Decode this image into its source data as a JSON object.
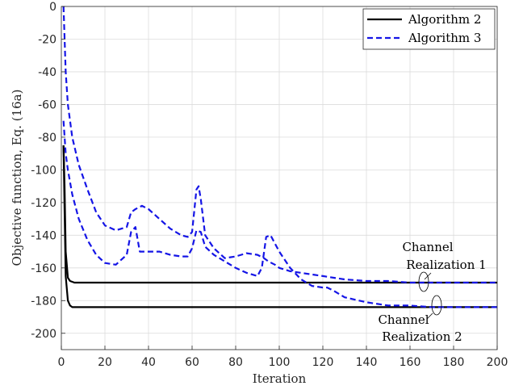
{
  "chart_data": {
    "type": "line",
    "xlabel": "Iteration",
    "ylabel": "Objective function, Eq. (16a)",
    "xlim": [
      0,
      200
    ],
    "ylim": [
      -210,
      0
    ],
    "xticks": [
      0,
      20,
      40,
      60,
      80,
      100,
      120,
      140,
      160,
      180,
      200
    ],
    "yticks": [
      0,
      -20,
      -40,
      -60,
      -80,
      -100,
      -120,
      -140,
      -160,
      -180,
      -200
    ],
    "grid": true,
    "legend_position": "top-right",
    "legend": [
      "Algorithm 2",
      "Algorithm 3"
    ],
    "series": [
      {
        "name": "Algorithm 2",
        "color": "#000000",
        "style": "solid",
        "x": [
          1,
          1.5,
          2,
          3,
          4,
          6,
          10,
          50,
          100,
          150,
          200
        ],
        "y": [
          -85,
          -110,
          -150,
          -166,
          -168,
          -169,
          -169,
          -169,
          -169,
          -169,
          -169
        ]
      },
      {
        "name": "Algorithm 2",
        "color": "#000000",
        "style": "solid",
        "x": [
          1,
          1.5,
          2,
          3,
          4,
          5,
          8,
          50,
          100,
          150,
          200
        ],
        "y": [
          -85,
          -125,
          -165,
          -180,
          -183,
          -184,
          -184,
          -184,
          -184,
          -184,
          -184
        ]
      },
      {
        "name": "Algorithm 3",
        "color": "#1515e6",
        "style": "dashed",
        "x": [
          1,
          2,
          3,
          5,
          8,
          12,
          16,
          20,
          25,
          30,
          32,
          34,
          37,
          40,
          45,
          50,
          55,
          58,
          60,
          62,
          63,
          64,
          66,
          70,
          75,
          80,
          85,
          90,
          93,
          95,
          98,
          100,
          105,
          110,
          115,
          120,
          125,
          130,
          140,
          150,
          160,
          170,
          180,
          190,
          200
        ],
        "y": [
          0,
          -40,
          -60,
          -80,
          -97,
          -112,
          -126,
          -134,
          -137,
          -135,
          -126,
          -124,
          -122,
          -124,
          -130,
          -136,
          -140,
          -141,
          -138,
          -112,
          -110,
          -118,
          -140,
          -148,
          -154,
          -153,
          -151,
          -152,
          -154,
          -156,
          -158,
          -160,
          -162,
          -163,
          -164,
          -165,
          -166,
          -167,
          -168,
          -168,
          -169,
          -169,
          -169,
          -169,
          -169
        ]
      },
      {
        "name": "Algorithm 3",
        "color": "#1515e6",
        "style": "dashed",
        "x": [
          1,
          2,
          3,
          5,
          8,
          12,
          16,
          20,
          25,
          30,
          32,
          34,
          36,
          40,
          45,
          50,
          55,
          58,
          60,
          62,
          64,
          66,
          70,
          75,
          80,
          85,
          90,
          92,
          94,
          96,
          100,
          105,
          110,
          115,
          120,
          122,
          125,
          130,
          140,
          150,
          160,
          170,
          180,
          190,
          200
        ],
        "y": [
          -70,
          -90,
          -100,
          -115,
          -130,
          -143,
          -152,
          -157,
          -158,
          -152,
          -138,
          -135,
          -150,
          -150,
          -150,
          -152,
          -153,
          -153,
          -148,
          -137,
          -138,
          -147,
          -152,
          -156,
          -160,
          -163,
          -165,
          -160,
          -141,
          -140,
          -150,
          -160,
          -167,
          -171,
          -172,
          -172,
          -174,
          -178,
          -181,
          -183,
          -183,
          -184,
          -184,
          -184,
          -184
        ]
      }
    ],
    "annotations": [
      {
        "lines": [
          "Channel",
          "Realization 1"
        ],
        "at": [
          166,
          -169
        ]
      },
      {
        "lines": [
          "Channel",
          "Realization 2"
        ],
        "at": [
          172,
          -184
        ]
      }
    ]
  }
}
